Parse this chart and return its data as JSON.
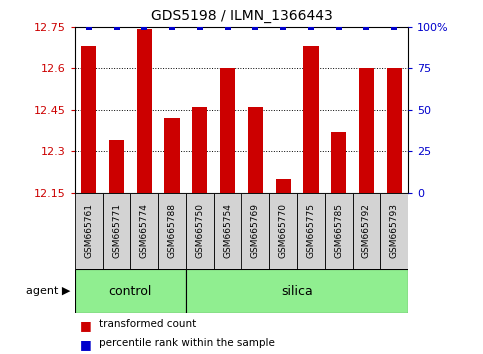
{
  "title": "GDS5198 / ILMN_1366443",
  "samples": [
    "GSM665761",
    "GSM665771",
    "GSM665774",
    "GSM665788",
    "GSM665750",
    "GSM665754",
    "GSM665769",
    "GSM665770",
    "GSM665775",
    "GSM665785",
    "GSM665792",
    "GSM665793"
  ],
  "transformed_counts": [
    12.68,
    12.34,
    12.74,
    12.42,
    12.46,
    12.6,
    12.46,
    12.2,
    12.68,
    12.37,
    12.6,
    12.6
  ],
  "percentile_ranks": [
    100,
    100,
    100,
    100,
    100,
    100,
    100,
    100,
    100,
    100,
    100,
    100
  ],
  "ylim_left": [
    12.15,
    12.75
  ],
  "ylim_right": [
    0,
    100
  ],
  "yticks_left": [
    12.15,
    12.3,
    12.45,
    12.6,
    12.75
  ],
  "yticks_right": [
    0,
    25,
    50,
    75,
    100
  ],
  "ytick_labels_left": [
    "12.15",
    "12.3",
    "12.45",
    "12.6",
    "12.75"
  ],
  "ytick_labels_right": [
    "0",
    "25",
    "50",
    "75",
    "100%"
  ],
  "bar_color": "#cc0000",
  "percentile_color": "#0000cc",
  "bar_width": 0.55,
  "grid_color": "#000000",
  "background_color": "#ffffff",
  "n_control": 4,
  "n_silica": 8,
  "control_color": "#90ee90",
  "silica_color": "#90ee90",
  "agent_label": "agent",
  "control_label": "control",
  "silica_label": "silica",
  "legend_transformed": "transformed count",
  "legend_percentile": "percentile rank within the sample",
  "tick_label_color_left": "#cc0000",
  "tick_label_color_right": "#0000cc",
  "label_box_color": "#d3d3d3",
  "title_fontsize": 10,
  "tick_fontsize": 8,
  "sample_fontsize": 6.5,
  "agent_fontsize": 8,
  "group_fontsize": 9,
  "legend_fontsize": 7.5
}
